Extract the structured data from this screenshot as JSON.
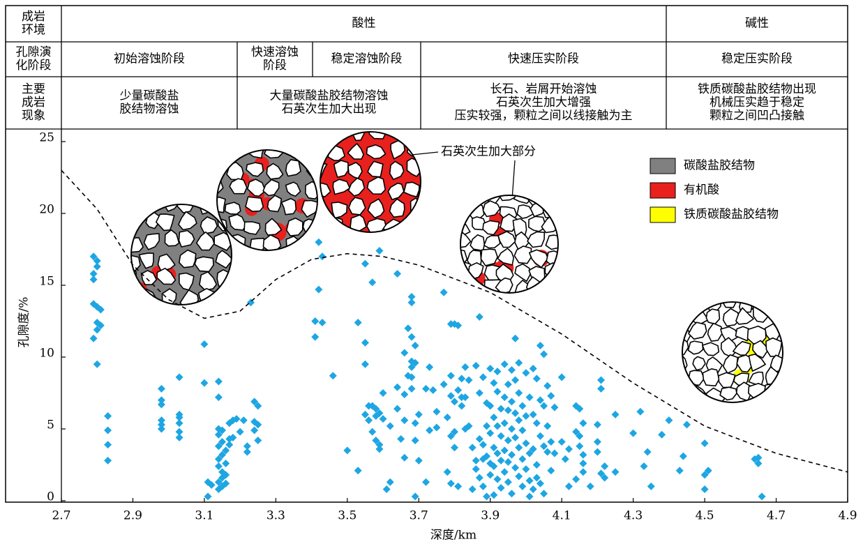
{
  "header_table": {
    "rows": [
      [
        [
          "成岩",
          "环境"
        ],
        [
          "酸性"
        ],
        [
          "碱性"
        ]
      ],
      [
        [
          "孔隙演",
          "化阶段"
        ],
        [
          "初始溶蚀阶段"
        ],
        [
          "快速溶蚀",
          "阶段"
        ],
        [
          "稳定溶蚀阶段"
        ],
        [
          "快速压实阶段"
        ],
        [
          "稳定压实阶段"
        ]
      ],
      [
        [
          "主要",
          "成岩",
          "现象"
        ],
        [
          "少量碳酸盐",
          "胶结物溶蚀"
        ],
        [
          "大量碳酸盐胶结物溶蚀",
          "石英次生加大出现"
        ],
        [
          "长石、岩屑开始溶蚀",
          "石英次生加大增强",
          "压实较强，颗粒之间以线接触为主"
        ],
        [
          "铁质碳酸盐胶结物出现",
          "机械压实趋于稳定",
          "颗粒之间凹凸接触"
        ]
      ]
    ]
  },
  "chart_data": {
    "type": "scatter",
    "xlabel": "深度/km",
    "ylabel": "孔隙度/%",
    "xlim": [
      2.7,
      4.9
    ],
    "xticks": [
      2.7,
      2.9,
      3.1,
      3.3,
      3.5,
      3.7,
      3.9,
      4.1,
      4.3,
      4.5,
      4.7,
      4.9
    ],
    "ylim": [
      0,
      25
    ],
    "yticks": [
      0,
      5,
      10,
      15,
      20,
      25
    ],
    "annotation": "石英次生加大部分",
    "legend": [
      {
        "name": "碳酸盐胶结物",
        "color": "#808080"
      },
      {
        "name": "有机酸",
        "color": "#e8201e"
      },
      {
        "name": "铁质碳酸盐胶结物",
        "color": "#ffff00"
      }
    ],
    "series": [
      {
        "kind": "points",
        "color": "#1ea6e3",
        "x": [
          2.79,
          2.79,
          2.79,
          2.79,
          2.79,
          2.8,
          2.8,
          2.8,
          2.8,
          2.8,
          2.8,
          2.81,
          2.81,
          2.83,
          2.83,
          2.83,
          2.83,
          2.98,
          2.98,
          2.98,
          2.98,
          2.98,
          2.98,
          3.03,
          3.03,
          3.03,
          3.03,
          3.03,
          3.03,
          3.1,
          3.1,
          3.11,
          3.11,
          3.12,
          3.14,
          3.14,
          3.14,
          3.14,
          3.14,
          3.14,
          3.14,
          3.14,
          3.14,
          3.15,
          3.15,
          3.15,
          3.15,
          3.15,
          3.15,
          3.16,
          3.16,
          3.16,
          3.16,
          3.17,
          3.17,
          3.17,
          3.18,
          3.18,
          3.19,
          3.2,
          3.21,
          3.22,
          3.22,
          3.23,
          3.24,
          3.24,
          3.24,
          3.25,
          3.25,
          3.25,
          3.41,
          3.41,
          3.42,
          3.42,
          3.43,
          3.43,
          3.46,
          3.5,
          3.53,
          3.53,
          3.55,
          3.55,
          3.55,
          3.55,
          3.56,
          3.56,
          3.57,
          3.57,
          3.57,
          3.58,
          3.58,
          3.58,
          3.59,
          3.59,
          3.59,
          3.59,
          3.6,
          3.6,
          3.61,
          3.62,
          3.62,
          3.64,
          3.64,
          3.64,
          3.65,
          3.66,
          3.66,
          3.66,
          3.66,
          3.67,
          3.67,
          3.68,
          3.68,
          3.68,
          3.68,
          3.68,
          3.68,
          3.68,
          3.69,
          3.69,
          3.69,
          3.69,
          3.69,
          3.7,
          3.7,
          3.72,
          3.72,
          3.73,
          3.73,
          3.74,
          3.75,
          3.75,
          3.77,
          3.77,
          3.78,
          3.78,
          3.79,
          3.79,
          3.79,
          3.79,
          3.79,
          3.8,
          3.8,
          3.8,
          3.8,
          3.81,
          3.81,
          3.81,
          3.82,
          3.82,
          3.82,
          3.83,
          3.83,
          3.83,
          3.84,
          3.84,
          3.85,
          3.85,
          3.86,
          3.86,
          3.86,
          3.87,
          3.87,
          3.87,
          3.87,
          3.88,
          3.88,
          3.88,
          3.88,
          3.89,
          3.89,
          3.89,
          3.89,
          3.9,
          3.9,
          3.9,
          3.9,
          3.9,
          3.91,
          3.91,
          3.91,
          3.91,
          3.91,
          3.92,
          3.92,
          3.92,
          3.92,
          3.92,
          3.93,
          3.93,
          3.93,
          3.93,
          3.94,
          3.94,
          3.94,
          3.94,
          3.94,
          3.95,
          3.95,
          3.95,
          3.95,
          3.95,
          3.96,
          3.96,
          3.96,
          3.96,
          3.96,
          3.97,
          3.97,
          3.97,
          3.97,
          3.97,
          3.98,
          3.98,
          3.98,
          3.98,
          3.98,
          3.99,
          3.99,
          3.99,
          3.99,
          4.0,
          4.0,
          4.0,
          4.0,
          4.01,
          4.01,
          4.01,
          4.01,
          4.02,
          4.02,
          4.02,
          4.02,
          4.03,
          4.03,
          4.03,
          4.03,
          4.04,
          4.04,
          4.04,
          4.04,
          4.05,
          4.05,
          4.05,
          4.05,
          4.06,
          4.06,
          4.06,
          4.07,
          4.07,
          4.07,
          4.08,
          4.08,
          4.1,
          4.1,
          4.11,
          4.12,
          4.12,
          4.14,
          4.14,
          4.14,
          4.15,
          4.15,
          4.15,
          4.16,
          4.16,
          4.16,
          4.16,
          4.18,
          4.2,
          4.2,
          4.2,
          4.21,
          4.21,
          4.21,
          4.22,
          4.22,
          4.25,
          4.25,
          4.3,
          4.32,
          4.33,
          4.34,
          4.35,
          4.38,
          4.4,
          4.43,
          4.44,
          4.45,
          4.5,
          4.5,
          4.5,
          4.51,
          4.64,
          4.65,
          4.65,
          4.66
        ],
        "values": [
          17.0,
          15.8,
          15.4,
          13.7,
          11.3,
          16.7,
          16.3,
          13.5,
          12.4,
          11.9,
          9.5,
          13.3,
          12.2,
          5.9,
          4.9,
          3.9,
          2.8,
          7.8,
          7.0,
          6.7,
          5.6,
          5.3,
          5.0,
          8.6,
          6.0,
          5.8,
          5.4,
          4.8,
          4.4,
          10.9,
          8.2,
          1.3,
          0.3,
          1.1,
          8.3,
          7.2,
          5.0,
          4.6,
          3.8,
          2.9,
          2.4,
          1.3,
          0.8,
          4.9,
          4.1,
          3.2,
          2.0,
          1.6,
          1.0,
          3.5,
          2.6,
          1.8,
          1.2,
          5.4,
          4.3,
          3.9,
          5.6,
          4.4,
          5.7,
          4.8,
          5.6,
          3.8,
          3.4,
          13.8,
          6.9,
          5.5,
          4.9,
          6.6,
          5.3,
          4.2,
          12.5,
          11.4,
          18.0,
          14.7,
          17.0,
          12.4,
          8.7,
          3.5,
          12.4,
          2.1,
          16.5,
          11.0,
          9.5,
          6.0,
          6.6,
          5.6,
          15.2,
          6.6,
          4.8,
          6.4,
          5.9,
          4.2,
          17.4,
          6.1,
          3.9,
          3.6,
          7.5,
          5.7,
          0.8,
          5.2,
          1.3,
          15.8,
          7.9,
          6.4,
          4.3,
          10.3,
          7.4,
          5.6,
          3.0,
          12.0,
          8.7,
          14.2,
          13.8,
          11.4,
          9.7,
          9.3,
          8.6,
          7.8,
          10.8,
          9.6,
          5.4,
          4.2,
          0.3,
          6.0,
          2.8,
          7.8,
          1.3,
          9.3,
          4.9,
          7.7,
          6.2,
          5.1,
          14.5,
          8.1,
          5.8,
          2.0,
          12.3,
          8.7,
          7.3,
          4.5,
          1.2,
          12.3,
          6.9,
          4.8,
          3.7,
          12.2,
          7.7,
          1.0,
          8.5,
          7.2,
          6.6,
          9.3,
          7.2,
          5.0,
          8.4,
          5.2,
          3.7,
          0.8,
          9.4,
          2.8,
          2.2,
          12.8,
          7.5,
          4.3,
          1.6,
          8.6,
          3.9,
          2.9,
          1.0,
          6.8,
          5.2,
          3.1,
          0.3,
          9.2,
          6.6,
          4.7,
          2.6,
          1.8,
          8.2,
          5.8,
          3.7,
          2.4,
          0.4,
          9.0,
          7.6,
          5.2,
          3.3,
          1.5,
          6.4,
          4.5,
          2.8,
          0.9,
          9.5,
          7.2,
          5.4,
          3.5,
          2.0,
          8.1,
          6.3,
          4.2,
          2.7,
          1.3,
          9.1,
          6.9,
          5.0,
          3.2,
          0.5,
          11.3,
          8.4,
          6.1,
          4.4,
          2.3,
          9.6,
          7.5,
          5.6,
          3.7,
          1.7,
          6.6,
          4.9,
          2.9,
          1.0,
          8.9,
          5.9,
          4.0,
          2.2,
          7.2,
          3.3,
          1.4,
          0.3,
          9.2,
          6.0,
          3.6,
          0.8,
          8.5,
          5.4,
          2.5,
          1.6,
          10.8,
          7.0,
          4.5,
          1.2,
          10.2,
          6.6,
          3.8,
          0.5,
          8.0,
          5.2,
          3.4,
          7.3,
          4.1,
          2.1,
          6.5,
          3.3,
          8.6,
          4.1,
          2.9,
          3.6,
          1.0,
          6.6,
          4.8,
          1.5,
          6.4,
          4.5,
          3.8,
          5.4,
          3.2,
          2.6,
          2.0,
          1.0,
          5.3,
          4.1,
          3.4,
          8.4,
          7.8,
          1.9,
          2.4,
          1.6,
          6.0,
          2.0,
          4.7,
          6.2,
          2.4,
          3.4,
          1.0,
          4.6,
          5.6,
          2.1,
          3.1,
          5.3,
          4.0,
          1.8,
          0.8,
          2.1,
          2.9,
          3.0,
          2.6,
          0.3
        ]
      },
      {
        "kind": "dashed-line",
        "color": "#000000",
        "x": [
          2.7,
          2.8,
          2.9,
          3.0,
          3.1,
          3.2,
          3.3,
          3.4,
          3.5,
          3.6,
          3.7,
          3.9,
          4.1,
          4.3,
          4.5,
          4.7,
          4.9
        ],
        "values": [
          23.0,
          20.3,
          16.4,
          14.0,
          12.7,
          13.2,
          15.4,
          16.8,
          17.2,
          17.0,
          16.4,
          14.5,
          11.6,
          8.2,
          5.2,
          3.3,
          2.0
        ]
      }
    ]
  }
}
